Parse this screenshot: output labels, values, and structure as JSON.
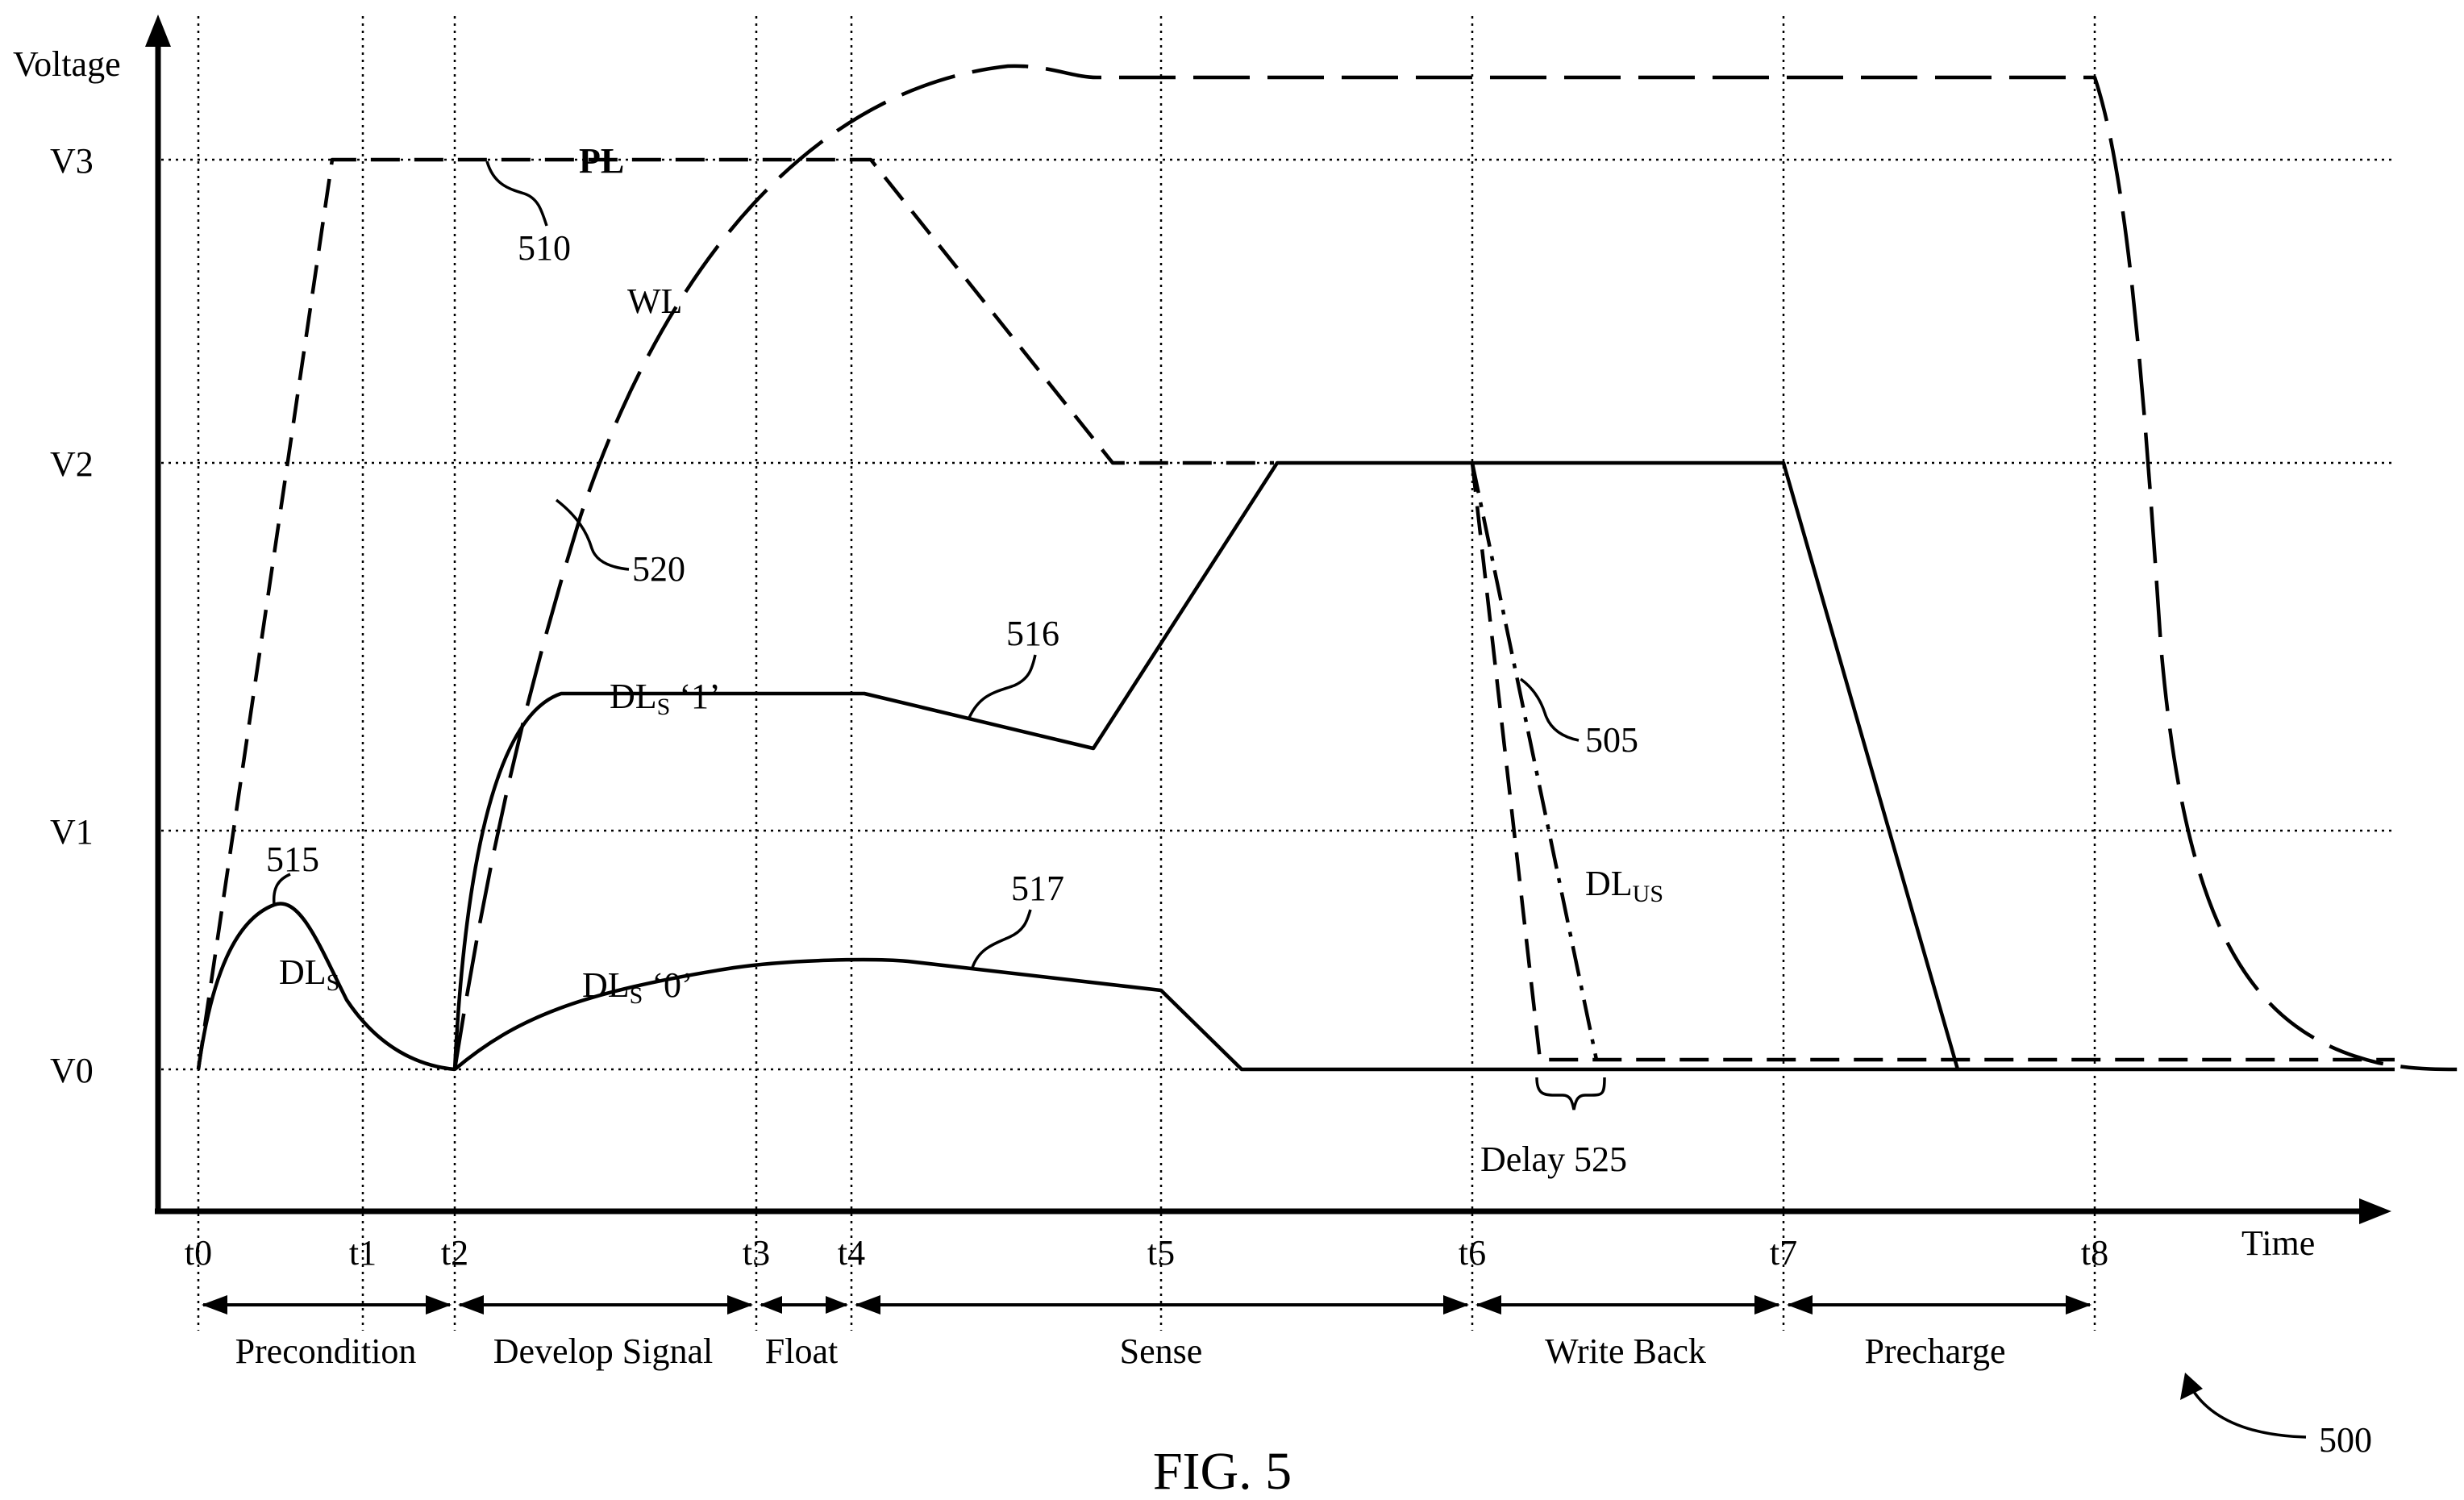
{
  "figure": {
    "caption": "FIG. 5",
    "reference": "500"
  },
  "axes": {
    "y_label": "Voltage",
    "x_label": "Time",
    "voltage_levels": [
      "V3",
      "V2",
      "V1",
      "V0"
    ],
    "time_marks": [
      "t0",
      "t1",
      "t2",
      "t3",
      "t4",
      "t5",
      "t6",
      "t7",
      "t8"
    ]
  },
  "phases": [
    {
      "name": "Precondition"
    },
    {
      "name": "Develop Signal"
    },
    {
      "name": "Float"
    },
    {
      "name": "Sense"
    },
    {
      "name": "Write Back"
    },
    {
      "name": "Precharge"
    }
  ],
  "signals": {
    "pl": {
      "label": "PL",
      "ref": "510"
    },
    "wl": {
      "label": "WL",
      "ref": "520"
    },
    "dls": {
      "label": "DL",
      "sub": "S",
      "ref": "515"
    },
    "dls1": {
      "label": "DL",
      "sub": "S",
      "suffix": " ‘1’",
      "ref": "516"
    },
    "dls0": {
      "label": "DL",
      "sub": "S",
      "suffix": " ‘0’",
      "ref": "517"
    },
    "dlus": {
      "label": "DL",
      "sub": "US",
      "ref": "505"
    },
    "delay": {
      "label": "Delay 525"
    }
  }
}
